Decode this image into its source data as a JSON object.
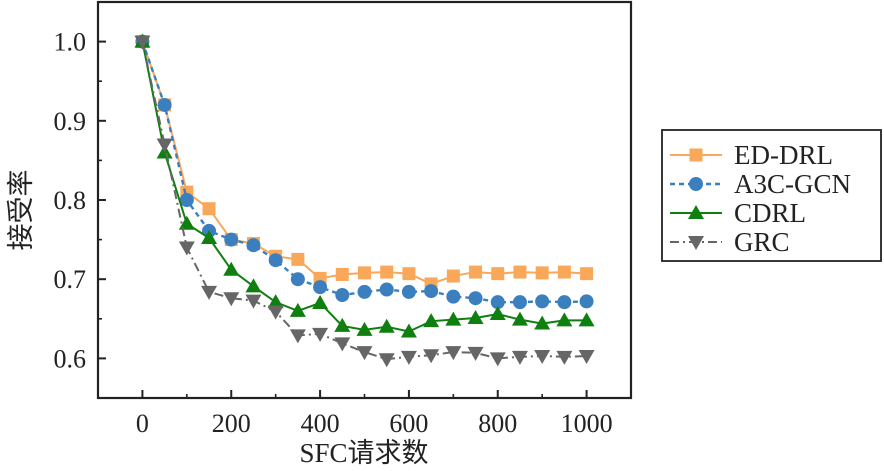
{
  "chart_data": {
    "type": "line",
    "title": "",
    "xlabel": "SFC请求数",
    "ylabel": "接受率",
    "xlim": [
      -100,
      1100
    ],
    "ylim": [
      0.55,
      1.05
    ],
    "xticks": [
      0,
      200,
      400,
      600,
      800,
      1000
    ],
    "xtick_labels": [
      "0",
      "200",
      "400",
      "600",
      "800",
      "1000"
    ],
    "x_minor_ticks": [
      100,
      300,
      500,
      700,
      900
    ],
    "yticks": [
      0.6,
      0.7,
      0.8,
      0.9,
      1.0
    ],
    "ytick_labels": [
      "0.6",
      "0.7",
      "0.8",
      "0.9",
      "1.0"
    ],
    "y_minor_ticks": [
      0.65,
      0.75,
      0.85,
      0.95
    ],
    "grid": false,
    "legend_position": "right, outside plot",
    "x": [
      0,
      50,
      100,
      150,
      200,
      250,
      300,
      350,
      400,
      450,
      500,
      550,
      600,
      650,
      700,
      750,
      800,
      850,
      900,
      950,
      1000
    ],
    "series": [
      {
        "name": "ED-DRL",
        "color": "#F9A85A",
        "line_style": "solid",
        "marker": "square",
        "values": [
          1.0,
          0.92,
          0.81,
          0.789,
          0.75,
          0.745,
          0.729,
          0.725,
          0.701,
          0.706,
          0.708,
          0.709,
          0.707,
          0.694,
          0.704,
          0.709,
          0.707,
          0.709,
          0.708,
          0.709,
          0.707
        ]
      },
      {
        "name": "A3C-GCN",
        "color": "#3B7FBF",
        "line_style": "dashed",
        "marker": "circle",
        "values": [
          1.0,
          0.92,
          0.8,
          0.761,
          0.75,
          0.743,
          0.724,
          0.7,
          0.69,
          0.68,
          0.684,
          0.687,
          0.684,
          0.685,
          0.678,
          0.676,
          0.671,
          0.671,
          0.672,
          0.671,
          0.672
        ]
      },
      {
        "name": "CDRL",
        "color": "#0F800F",
        "line_style": "solid",
        "marker": "triangle-up",
        "values": [
          1.0,
          0.86,
          0.77,
          0.752,
          0.712,
          0.691,
          0.671,
          0.66,
          0.67,
          0.641,
          0.636,
          0.64,
          0.634,
          0.647,
          0.649,
          0.651,
          0.656,
          0.649,
          0.644,
          0.648,
          0.648
        ]
      },
      {
        "name": "GRC",
        "color": "#666666",
        "line_style": "dashdot",
        "marker": "triangle-down",
        "values": [
          1.0,
          0.87,
          0.74,
          0.684,
          0.676,
          0.673,
          0.659,
          0.629,
          0.631,
          0.619,
          0.608,
          0.599,
          0.602,
          0.604,
          0.608,
          0.607,
          0.6,
          0.602,
          0.603,
          0.602,
          0.603
        ]
      }
    ]
  }
}
